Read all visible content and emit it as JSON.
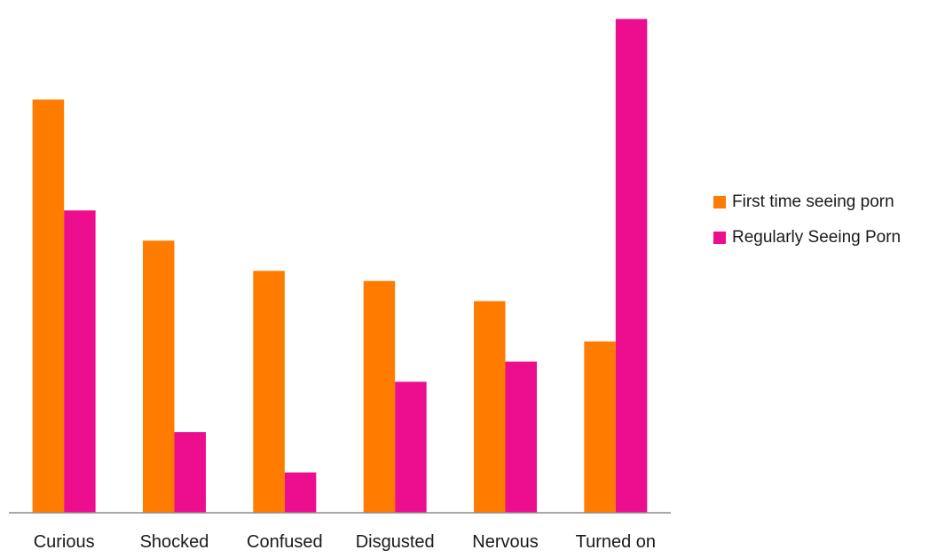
{
  "chart_data": {
    "type": "bar",
    "title": "",
    "xlabel": "",
    "ylabel": "",
    "categories": [
      "Curious",
      "Shocked",
      "Confused",
      "Disgusted",
      "Nervous",
      "Turned on"
    ],
    "series": [
      {
        "name": "First time seeing porn",
        "color": "#ff7c00",
        "values": [
          41,
          27,
          24,
          23,
          21,
          17
        ]
      },
      {
        "name": "Regularly Seeing Porn",
        "color": "#ed0e8f",
        "values": [
          30,
          8,
          4,
          13,
          15,
          49
        ]
      }
    ],
    "ylim": [
      0,
      50
    ],
    "grid": false,
    "y_axis_visible": false,
    "legend_position": "right"
  }
}
